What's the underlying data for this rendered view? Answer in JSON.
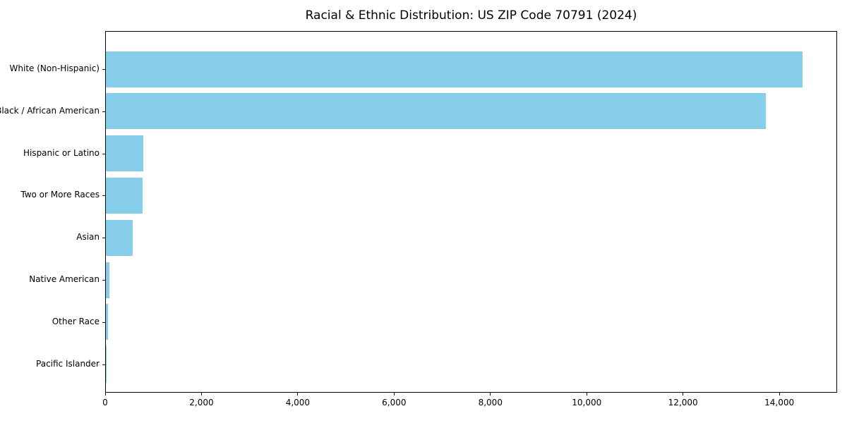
{
  "chart_data": {
    "type": "bar",
    "orientation": "horizontal",
    "title": "Racial & Ethnic Distribution: US ZIP Code 70791 (2024)",
    "categories": [
      "White (Non-Hispanic)",
      "Black / African American",
      "Hispanic or Latino",
      "Two or More Races",
      "Asian",
      "Native American",
      "Other Race",
      "Pacific Islander"
    ],
    "values": [
      14470,
      13700,
      780,
      760,
      555,
      73,
      46,
      10
    ],
    "xlabel": "",
    "ylabel": "",
    "xlim": [
      0,
      15200
    ],
    "x_ticks": [
      {
        "value": 0,
        "label": "0"
      },
      {
        "value": 2000,
        "label": "2,000"
      },
      {
        "value": 4000,
        "label": "4,000"
      },
      {
        "value": 6000,
        "label": "6,000"
      },
      {
        "value": 8000,
        "label": "8,000"
      },
      {
        "value": 10000,
        "label": "10,000"
      },
      {
        "value": 12000,
        "label": "12,000"
      },
      {
        "value": 14000,
        "label": "14,000"
      }
    ],
    "bar_color": "#87CEEB",
    "grid": false,
    "legend": null,
    "background_color": "#ffffff",
    "border_color": "#000000"
  }
}
